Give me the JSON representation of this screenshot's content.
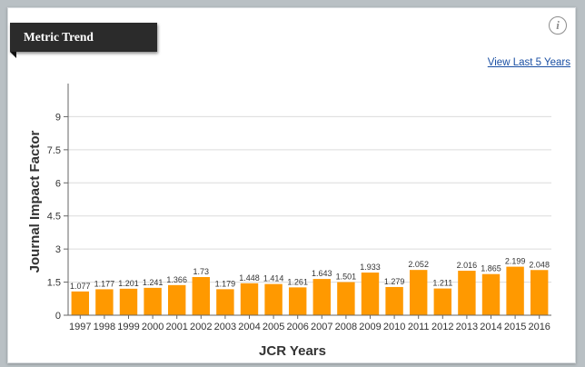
{
  "panel": {
    "title": "Metric Trend",
    "info_icon": "info-icon",
    "link_label": "View Last 5 Years"
  },
  "colors": {
    "bar": "#ff9900",
    "gridline": "#dcdcdc",
    "axis": "#666666",
    "tab_background": "#2b2b2b"
  },
  "chart_data": {
    "type": "bar",
    "title": "",
    "xlabel": "JCR Years",
    "ylabel": "Journal Impact Factor",
    "ylim": [
      0,
      10.5
    ],
    "yticks": [
      0,
      1.5,
      3,
      4.5,
      6,
      7.5,
      9
    ],
    "ytick_labels": [
      "0",
      "1.5",
      "3",
      "4.5",
      "6",
      "7.5",
      "9"
    ],
    "grid": true,
    "legend": "none",
    "categories": [
      "1997",
      "1998",
      "1999",
      "2000",
      "2001",
      "2002",
      "2003",
      "2004",
      "2005",
      "2006",
      "2007",
      "2008",
      "2009",
      "2010",
      "2011",
      "2012",
      "2013",
      "2014",
      "2015",
      "2016"
    ],
    "values": [
      1.077,
      1.177,
      1.201,
      1.241,
      1.366,
      1.73,
      1.179,
      1.448,
      1.414,
      1.261,
      1.643,
      1.501,
      1.933,
      1.279,
      2.052,
      1.211,
      2.016,
      1.865,
      2.199,
      2.048
    ],
    "value_labels": [
      "1.077",
      "1.177",
      "1.201",
      "1.241",
      "1.366",
      "1.73",
      "1.179",
      "1.448",
      "1.414",
      "1.261",
      "1.643",
      "1.501",
      "1.933",
      "1.279",
      "2.052",
      "1.211",
      "2.016",
      "1.865",
      "2.199",
      "2.048"
    ]
  }
}
